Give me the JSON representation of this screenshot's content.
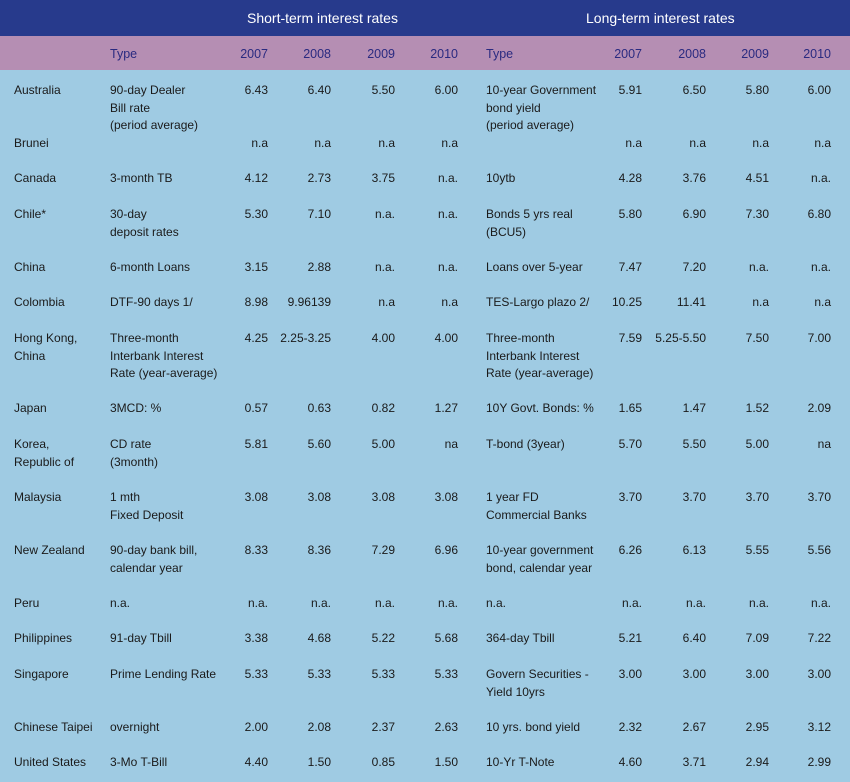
{
  "header": {
    "short_title": "Short-term interest rates",
    "long_title": "Long-term interest rates"
  },
  "columns": {
    "short_type": "Type",
    "s2007": "2007",
    "s2008": "2008",
    "s2009": "2009",
    "s2010": "2010",
    "long_type": "Type",
    "l2007": "2007",
    "l2008": "2008",
    "l2009": "2009",
    "l2010": "2010"
  },
  "rows": [
    {
      "country": "Australia",
      "stype": "90-day Dealer\nBill rate\n(period average)",
      "s": [
        "6.43",
        "6.40",
        "5.50",
        "6.00"
      ],
      "ltype": "10-year Government\nbond yield\n(period average)",
      "l": [
        "5.91",
        "6.50",
        "5.80",
        "6.00"
      ]
    },
    {
      "country": "Brunei",
      "stype": "",
      "s": [
        "n.a",
        "n.a",
        "n.a",
        "n.a"
      ],
      "ltype": "",
      "l": [
        "n.a",
        "n.a",
        "n.a",
        "n.a"
      ]
    },
    {
      "country": "Canada",
      "stype": "3-month TB",
      "s": [
        "4.12",
        "2.73",
        "3.75",
        "n.a."
      ],
      "ltype": "10ytb",
      "l": [
        "4.28",
        "3.76",
        "4.51",
        "n.a."
      ]
    },
    {
      "country": "Chile*",
      "stype": "30-day\ndeposit rates",
      "s": [
        "5.30",
        "7.10",
        "n.a.",
        "n.a."
      ],
      "ltype": "Bonds 5 yrs real\n(BCU5)",
      "l": [
        "5.80",
        "6.90",
        "7.30",
        "6.80"
      ]
    },
    {
      "country": "China",
      "stype": " 6-month Loans",
      "s": [
        "3.15",
        "2.88",
        "n.a.",
        "n.a."
      ],
      "ltype": "Loans over 5-year",
      "l": [
        "7.47",
        "7.20",
        "n.a.",
        "n.a."
      ]
    },
    {
      "country": "Colombia",
      "stype": "DTF-90 days 1/",
      "s": [
        "8.98",
        "9.96139",
        "n.a",
        "n.a"
      ],
      "ltype": "TES-Largo plazo 2/",
      "l": [
        "10.25",
        "11.41",
        "n.a",
        "n.a"
      ]
    },
    {
      "country": "Hong Kong,\nChina",
      "stype": "Three-month\nInterbank Interest\nRate (year-average)",
      "s": [
        "4.25",
        "2.25-3.25",
        "4.00",
        "4.00"
      ],
      "ltype": "Three-month\nInterbank Interest\nRate (year-average)",
      "l": [
        "7.59",
        "5.25-5.50",
        "7.50",
        "7.00"
      ]
    },
    {
      "country": "Japan",
      "stype": "3MCD: %",
      "s": [
        "0.57",
        "0.63",
        "0.82",
        "1.27"
      ],
      "ltype": "10Y Govt. Bonds: %",
      "l": [
        "1.65",
        "1.47",
        "1.52",
        "2.09"
      ]
    },
    {
      "country": "Korea,\nRepublic of",
      "stype": "CD rate\n(3month)",
      "s": [
        "5.81",
        "5.60",
        "5.00",
        "na"
      ],
      "ltype": " T-bond (3year)",
      "l": [
        "5.70",
        "5.50",
        "5.00",
        "na"
      ]
    },
    {
      "country": "Malaysia",
      "stype": "1 mth\nFixed Deposit",
      "s": [
        "3.08",
        "3.08",
        "3.08",
        "3.08"
      ],
      "ltype": "1 year FD\nCommercial Banks",
      "l": [
        "3.70",
        "3.70",
        "3.70",
        "3.70"
      ]
    },
    {
      "country": "New Zealand",
      "stype": "90-day bank bill,\ncalendar year",
      "s": [
        "8.33",
        "8.36",
        "7.29",
        "6.96"
      ],
      "ltype": "10-year government\nbond, calendar year",
      "l": [
        "6.26",
        "6.13",
        "5.55",
        "5.56"
      ]
    },
    {
      "country": "Peru",
      "stype": "n.a.",
      "s": [
        "n.a.",
        "n.a.",
        "n.a.",
        "n.a."
      ],
      "ltype": " n.a.",
      "l": [
        "n.a.",
        "n.a.",
        "n.a.",
        "n.a."
      ]
    },
    {
      "country": "Philippines",
      "stype": "91-day Tbill",
      "s": [
        "3.38",
        "4.68",
        "5.22",
        "5.68"
      ],
      "ltype": " 364-day Tbill",
      "l": [
        "5.21",
        "6.40",
        "7.09",
        "7.22"
      ]
    },
    {
      "country": "Singapore",
      "stype": "Prime Lending Rate",
      "s": [
        "5.33",
        "5.33",
        "5.33",
        "5.33"
      ],
      "ltype": "Govern Securities -\nYield 10yrs",
      "l": [
        "3.00",
        "3.00",
        "3.00",
        "3.00"
      ]
    },
    {
      "country": "Chinese Taipei",
      "stype": "overnight",
      "s": [
        "2.00",
        "2.08",
        "2.37",
        "2.63"
      ],
      "ltype": "10 yrs. bond yield",
      "l": [
        "2.32",
        "2.67",
        "2.95",
        "3.12"
      ]
    },
    {
      "country": "United States",
      "stype": "3-Mo T-Bill",
      "s": [
        "4.40",
        "1.50",
        "0.85",
        "1.50"
      ],
      "ltype": "10-Yr T-Note",
      "l": [
        "4.60",
        "3.71",
        "2.94",
        "2.99"
      ]
    }
  ]
}
